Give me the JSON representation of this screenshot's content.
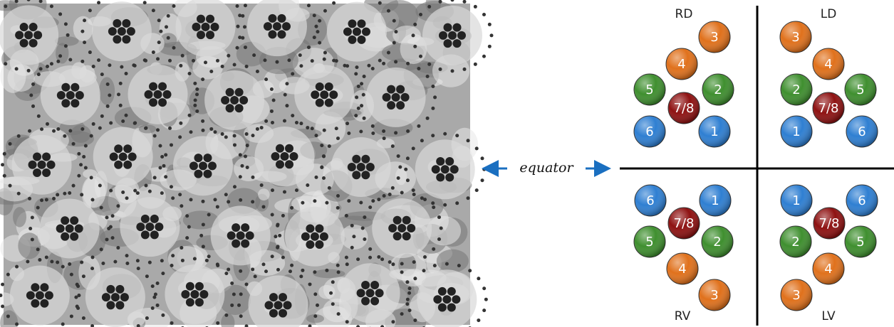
{
  "equator_label": "equator",
  "quadrants": [
    {
      "label": "RD",
      "cells": [
        {
          "label": "3",
          "color": "#e0711c"
        },
        {
          "label": "4",
          "color": "#e0711c"
        },
        {
          "label": "5",
          "color": "#3f8f2f"
        },
        {
          "label": "2",
          "color": "#3f8f2f"
        },
        {
          "label": "7/8",
          "color": "#8e1212"
        },
        {
          "label": "6",
          "color": "#2f7fd2"
        },
        {
          "label": "1",
          "color": "#2f7fd2"
        }
      ]
    },
    {
      "label": "LD",
      "cells": [
        {
          "label": "3",
          "color": "#e0711c"
        },
        {
          "label": "4",
          "color": "#e0711c"
        },
        {
          "label": "2",
          "color": "#3f8f2f"
        },
        {
          "label": "5",
          "color": "#3f8f2f"
        },
        {
          "label": "7/8",
          "color": "#8e1212"
        },
        {
          "label": "1",
          "color": "#2f7fd2"
        },
        {
          "label": "6",
          "color": "#2f7fd2"
        }
      ]
    },
    {
      "label": "RV",
      "cells": [
        {
          "label": "6",
          "color": "#2f7fd2"
        },
        {
          "label": "1",
          "color": "#2f7fd2"
        },
        {
          "label": "7/8",
          "color": "#8e1212"
        },
        {
          "label": "5",
          "color": "#3f8f2f"
        },
        {
          "label": "2",
          "color": "#3f8f2f"
        },
        {
          "label": "4",
          "color": "#e0711c"
        },
        {
          "label": "3",
          "color": "#e0711c"
        }
      ]
    },
    {
      "label": "LV",
      "cells": [
        {
          "label": "1",
          "color": "#2f7fd2"
        },
        {
          "label": "6",
          "color": "#2f7fd2"
        },
        {
          "label": "7/8",
          "color": "#8e1212"
        },
        {
          "label": "2",
          "color": "#3f8f2f"
        },
        {
          "label": "5",
          "color": "#3f8f2f"
        },
        {
          "label": "4",
          "color": "#e0711c"
        },
        {
          "label": "3",
          "color": "#e0711c"
        }
      ]
    }
  ]
}
